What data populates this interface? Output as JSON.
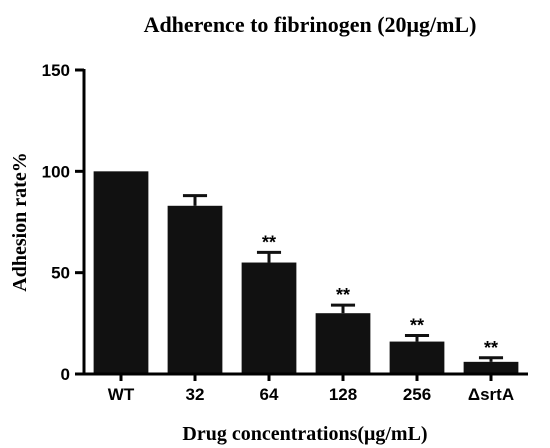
{
  "chart_data": {
    "type": "bar",
    "title": "Adherence to fibrinogen (20μg/mL)",
    "xlabel": "Drug concentrations(μg/mL)",
    "ylabel": "Adhesion rate%",
    "ylim": [
      0,
      150
    ],
    "yticks": [
      0,
      50,
      100,
      150
    ],
    "categories": [
      "WT",
      "32",
      "64",
      "128",
      "256",
      "ΔsrtA"
    ],
    "values": [
      100,
      83,
      55,
      30,
      16,
      6
    ],
    "error": [
      0,
      5,
      5,
      4,
      3,
      2
    ],
    "significance": [
      "",
      "",
      "**",
      "**",
      "**",
      "**"
    ],
    "bar_color": "#111111",
    "grid": false,
    "legend": "none"
  }
}
